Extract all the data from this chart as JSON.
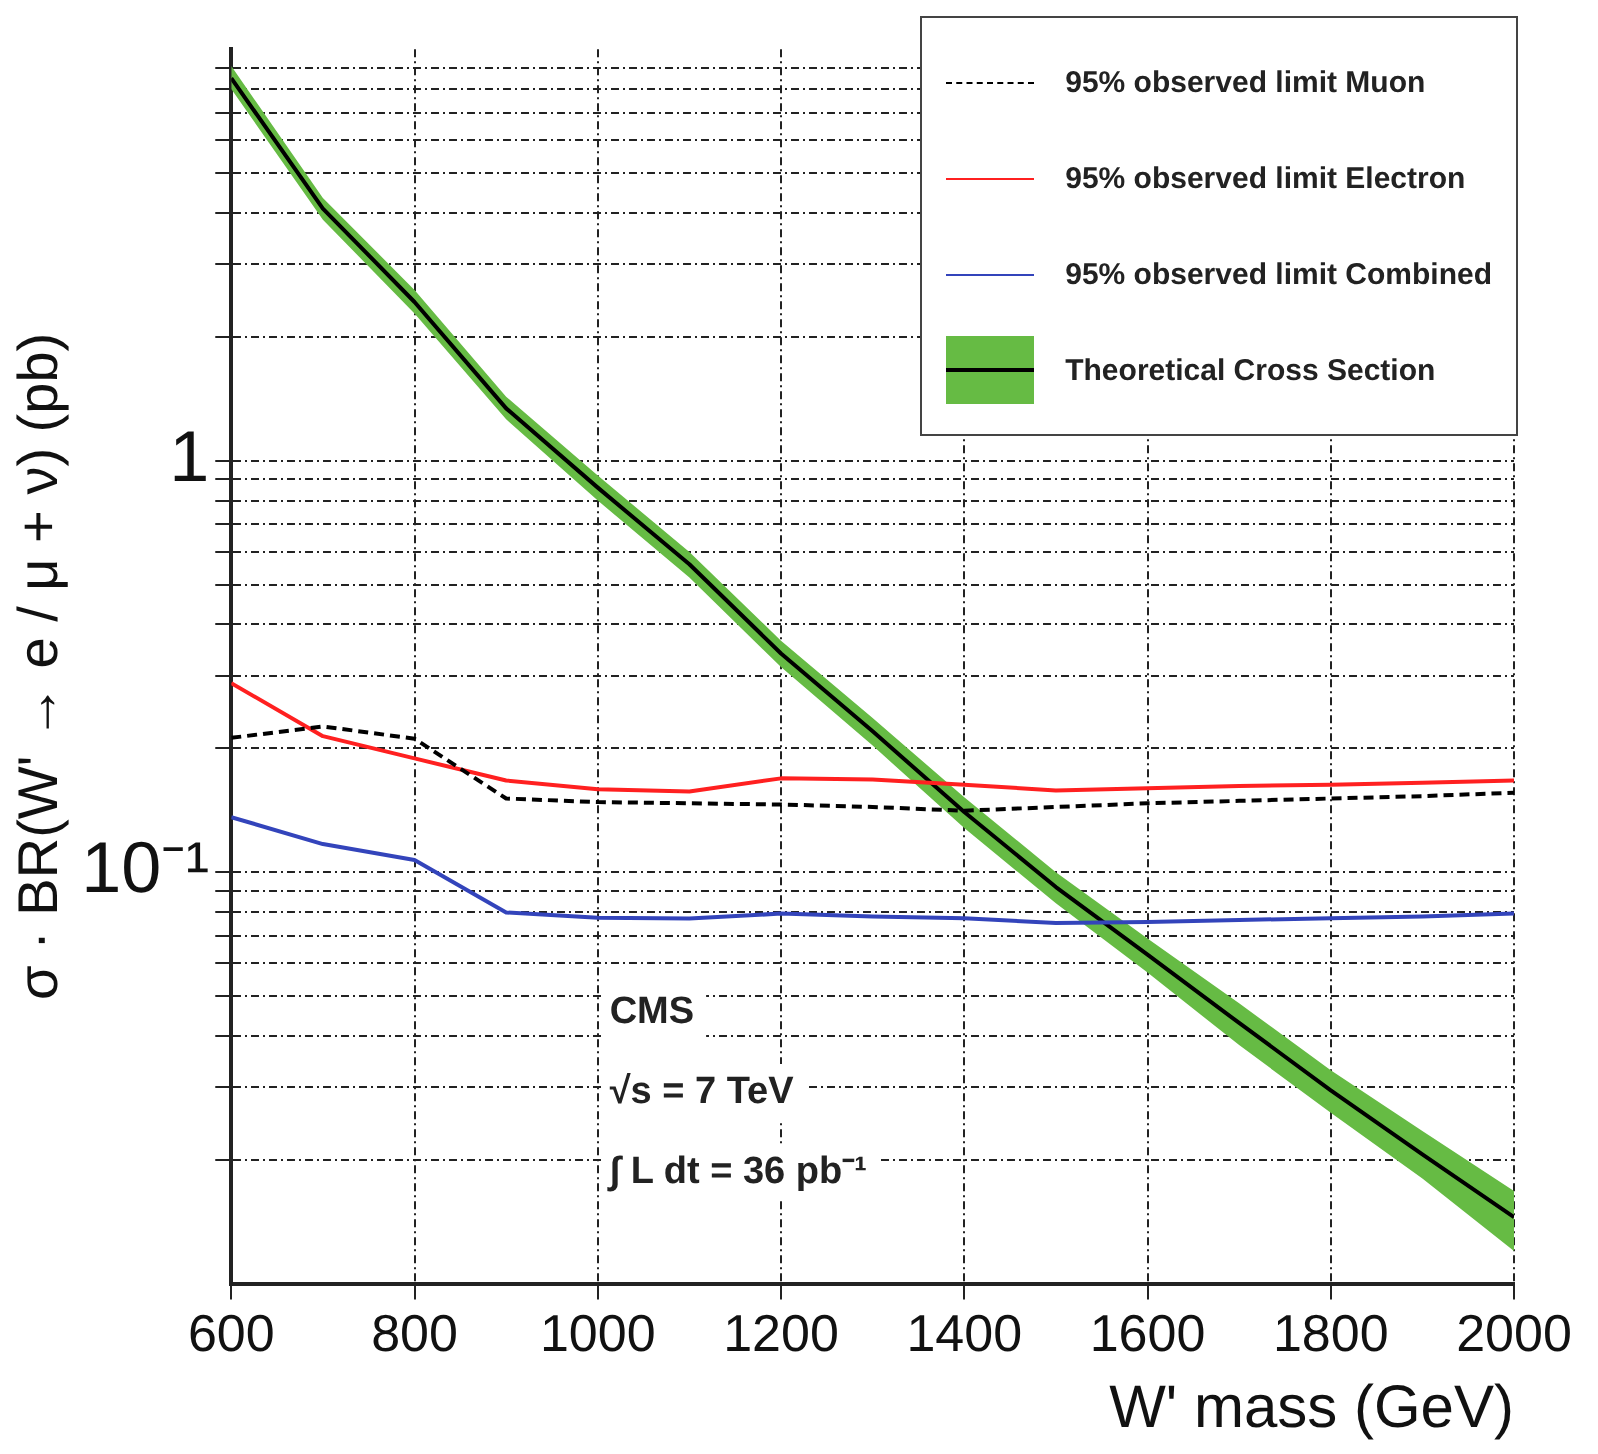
{
  "chart_data": {
    "type": "line",
    "xlabel": "W' mass (GeV)",
    "ylabel": "σ · BR(W' → e / μ + ν) (pb)",
    "x": [
      600,
      700,
      800,
      900,
      1000,
      1100,
      1200,
      1300,
      1400,
      1500,
      1600,
      1700,
      1800,
      1900,
      2000
    ],
    "series": [
      {
        "name": "95% observed limit Muon",
        "color": "#000000",
        "line_style": "dashed",
        "values": [
          0.212,
          0.226,
          0.211,
          0.151,
          0.148,
          0.147,
          0.146,
          0.144,
          0.141,
          0.144,
          0.147,
          0.149,
          0.151,
          0.153,
          0.156
        ]
      },
      {
        "name": "95% observed limit Electron",
        "color": "#ff2020",
        "line_style": "solid",
        "values": [
          0.288,
          0.214,
          0.189,
          0.167,
          0.159,
          0.157,
          0.169,
          0.168,
          0.163,
          0.158,
          0.16,
          0.162,
          0.163,
          0.165,
          0.167
        ]
      },
      {
        "name": "95% observed limit Combined",
        "color": "#3344bb",
        "line_style": "solid",
        "values": [
          0.136,
          0.117,
          0.107,
          0.0798,
          0.0775,
          0.0771,
          0.0793,
          0.078,
          0.0773,
          0.0752,
          0.0756,
          0.0765,
          0.0773,
          0.078,
          0.0793
        ]
      },
      {
        "name": "Theoretical Cross Section",
        "color": "#000000",
        "line_style": "solid",
        "values": [
          8.5,
          4.1,
          2.43,
          1.34,
          0.86,
          0.56,
          0.34,
          0.22,
          0.14,
          0.092,
          0.063,
          0.043,
          0.0295,
          0.0206,
          0.0145
        ],
        "lower": [
          8.0,
          3.85,
          2.28,
          1.26,
          0.8,
          0.52,
          0.315,
          0.203,
          0.128,
          0.084,
          0.057,
          0.038,
          0.026,
          0.018,
          0.012
        ],
        "upper": [
          9.1,
          4.35,
          2.6,
          1.43,
          0.92,
          0.6,
          0.365,
          0.237,
          0.152,
          0.1,
          0.069,
          0.048,
          0.033,
          0.0235,
          0.0168
        ]
      }
    ],
    "log": "y",
    "grid": true,
    "legend": "top right",
    "marker": "none",
    "xlim": [
      600,
      2000
    ],
    "xticks": [
      600,
      800,
      1000,
      1200,
      1400,
      1600,
      1800,
      2000
    ],
    "ylim": [
      0.01,
      10
    ],
    "yticks": [
      {
        "value": 0.02,
        "label": null
      },
      {
        "value": 0.03,
        "label": null
      },
      {
        "value": 0.04,
        "label": null
      },
      {
        "value": 0.05,
        "label": null
      },
      {
        "value": 0.06,
        "label": null
      },
      {
        "value": 0.07,
        "label": null
      },
      {
        "value": 0.08,
        "label": null
      },
      {
        "value": 0.09,
        "label": null
      },
      {
        "value": 0.1,
        "label": "10⁻¹"
      },
      {
        "value": 0.2,
        "label": null
      },
      {
        "value": 0.3,
        "label": null
      },
      {
        "value": 0.4,
        "label": null
      },
      {
        "value": 0.5,
        "label": null
      },
      {
        "value": 0.6,
        "label": null
      },
      {
        "value": 0.7,
        "label": null
      },
      {
        "value": 0.8,
        "label": null
      },
      {
        "value": 0.9,
        "label": null
      },
      {
        "value": 1,
        "label": "1"
      },
      {
        "value": 2,
        "label": null
      },
      {
        "value": 3,
        "label": null
      },
      {
        "value": 4,
        "label": null
      },
      {
        "value": 5,
        "label": null
      },
      {
        "value": 6,
        "label": null
      },
      {
        "value": 7,
        "label": null
      },
      {
        "value": 8,
        "label": null
      },
      {
        "value": 9,
        "label": null
      }
    ],
    "annotations": [
      "CMS",
      "√s = 7 TeV",
      "∫ L dt = 36 pb⁻¹"
    ]
  }
}
